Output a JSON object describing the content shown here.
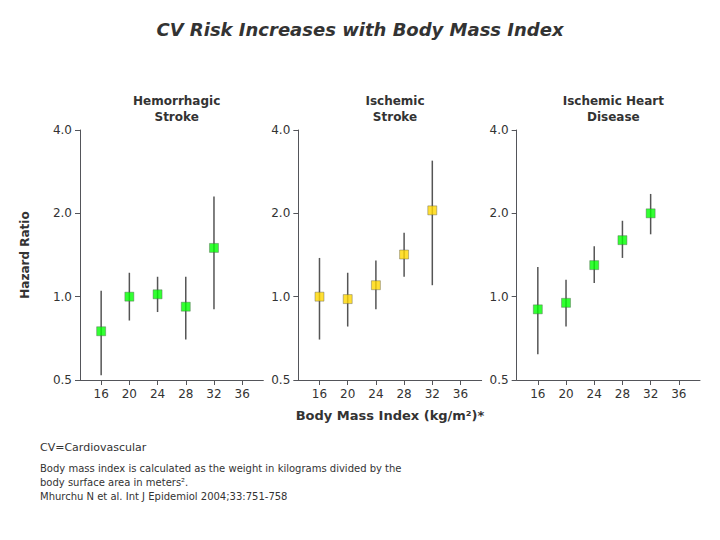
{
  "chart_data": {
    "type": "scatter",
    "title": "CV Risk Increases with Body Mass Index",
    "xlabel": "Body Mass Index (kg/m²)*",
    "ylabel": "Hazard Ratio",
    "annotations": [
      "CV=Cardiovascular",
      "Body mass index is calculated as the weight in kilograms divided by the\nbody surface area in meters².\nMhurchu N et al. Int J Epidemiol 2004;33:751-758"
    ],
    "log": "y",
    "grid": false,
    "marker": "square",
    "xlim": [
      13,
      39
    ],
    "xticks": [
      16,
      20,
      24,
      28,
      32,
      36
    ],
    "ylim": [
      0.5,
      4.0
    ],
    "yticks": [
      0.5,
      {
        "value": 1.0,
        "label": "1.0"
      },
      {
        "value": 2.0,
        "label": "2.0"
      },
      {
        "value": 4.0,
        "label": "4.0"
      }
    ],
    "series": [
      {
        "name": "Hemorrhagic\nStroke",
        "color": "#00FF00",
        "x": [
          16,
          20,
          24,
          28,
          32
        ],
        "values": [
          0.75,
          1.0,
          1.02,
          0.92,
          1.5
        ],
        "y_low": [
          0.52,
          0.82,
          0.88,
          0.7,
          0.9
        ],
        "y_high": [
          1.05,
          1.22,
          1.18,
          1.18,
          2.3
        ]
      },
      {
        "name": "Ischemic\nStroke",
        "color": "#FFD700",
        "x": [
          16,
          20,
          24,
          28,
          32
        ],
        "values": [
          1.0,
          0.98,
          1.1,
          1.42,
          2.05
        ],
        "y_low": [
          0.7,
          0.78,
          0.9,
          1.18,
          1.1
        ],
        "y_high": [
          1.38,
          1.22,
          1.35,
          1.7,
          3.1
        ]
      },
      {
        "name": "Ischemic Heart\nDisease",
        "color": "#00FF00",
        "x": [
          16,
          20,
          24,
          28,
          32
        ],
        "values": [
          0.9,
          0.95,
          1.3,
          1.6,
          2.0
        ],
        "y_low": [
          0.62,
          0.78,
          1.12,
          1.38,
          1.68
        ],
        "y_high": [
          1.28,
          1.15,
          1.52,
          1.88,
          2.35
        ]
      }
    ]
  }
}
